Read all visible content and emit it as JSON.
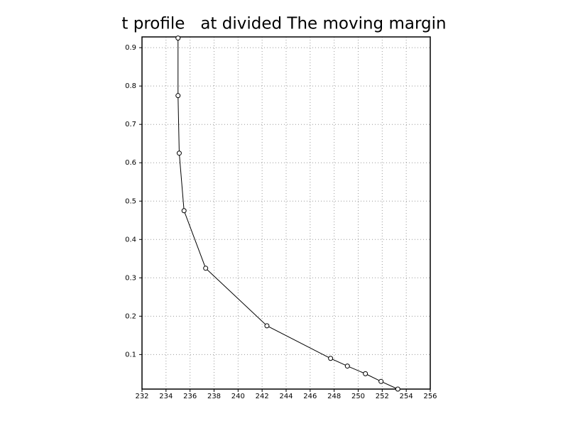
{
  "chart_data": {
    "type": "line",
    "title": "t profile   at divided The moving margin",
    "x": [
      235.0,
      235.0,
      235.1,
      235.5,
      237.3,
      242.4,
      247.7,
      249.1,
      250.6,
      251.9,
      253.3
    ],
    "series": [
      {
        "values": [
          0.925,
          0.775,
          0.625,
          0.475,
          0.325,
          0.175,
          0.09,
          0.07,
          0.05,
          0.03,
          0.01
        ],
        "color": "#000000"
      }
    ],
    "xlim": [
      232,
      256
    ],
    "xticks": [
      232,
      234,
      236,
      238,
      240,
      242,
      244,
      246,
      248,
      250,
      252,
      254,
      256
    ],
    "ylim": [
      0.01,
      0.928
    ],
    "yticks": [
      0.1,
      0.2,
      0.3,
      0.4,
      0.5,
      0.6,
      0.7,
      0.8,
      0.9
    ],
    "grid": true
  }
}
